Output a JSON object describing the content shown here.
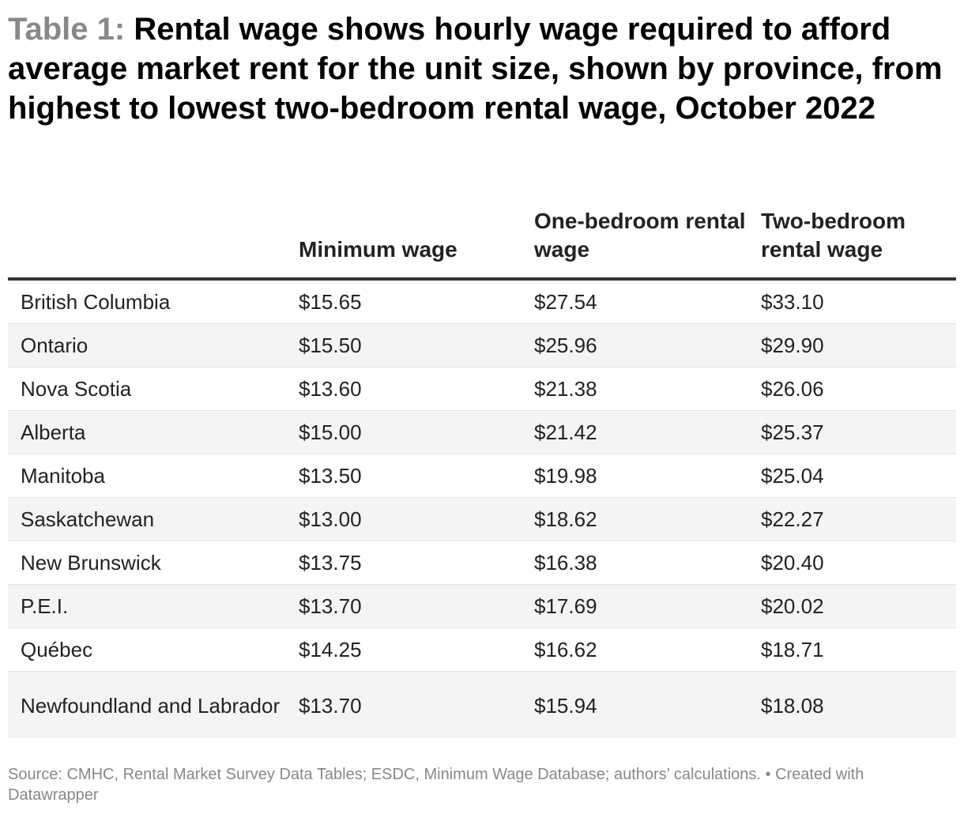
{
  "header": {
    "prefix": "Table 1:",
    "title": "Rental wage shows hourly wage required to afford average market rent for the unit size, shown by province, from highest to lowest two-bedroom rental wage, October 2022"
  },
  "chart_data": {
    "type": "table",
    "title": "Table 1: Rental wage shows hourly wage required to afford average market rent for the unit size, shown by province, from highest to lowest two-bedroom rental wage, October 2022",
    "columns": [
      "",
      "Minimum wage",
      "One-bedroom rental wage",
      "Two-bedroom rental wage"
    ],
    "rows": [
      [
        "British Columbia",
        "$15.65",
        "$27.54",
        "$33.10"
      ],
      [
        "Ontario",
        "$15.50",
        "$25.96",
        "$29.90"
      ],
      [
        "Nova Scotia",
        "$13.60",
        "$21.38",
        "$26.06"
      ],
      [
        "Alberta",
        "$15.00",
        "$21.42",
        "$25.37"
      ],
      [
        "Manitoba",
        "$13.50",
        "$19.98",
        "$25.04"
      ],
      [
        "Saskatchewan",
        "$13.00",
        "$18.62",
        "$22.27"
      ],
      [
        "New Brunswick",
        "$13.75",
        "$16.38",
        "$20.40"
      ],
      [
        "P.E.I.",
        "$13.70",
        "$17.69",
        "$20.02"
      ],
      [
        "Québec",
        "$14.25",
        "$16.62",
        "$18.71"
      ],
      [
        "Newfoundland and Labrador",
        "$13.70",
        "$15.94",
        "$18.08"
      ]
    ]
  },
  "footer": {
    "text": "Source: CMHC, Rental Market Survey Data Tables; ESDC, Minimum Wage Database; authors’ calculations. • Created with Datawrapper"
  }
}
